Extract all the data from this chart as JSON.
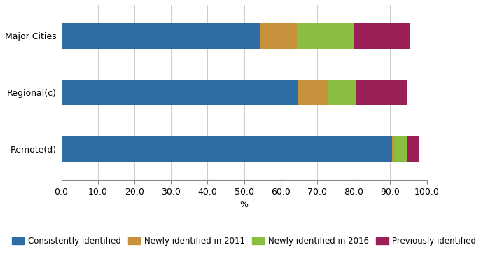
{
  "categories": [
    "Remote(d)",
    "Regional(c)",
    "Major Cities"
  ],
  "series": {
    "Consistently identified": [
      90.5,
      64.8,
      54.5
    ],
    "Newly identified in 2011": [
      0.5,
      8.2,
      10.0
    ],
    "Newly identified in 2016": [
      3.5,
      7.5,
      15.5
    ],
    "Previously identified": [
      3.5,
      14.0,
      15.5
    ]
  },
  "colors": {
    "Consistently identified": "#2E6DA4",
    "Newly identified in 2011": "#C8923C",
    "Newly identified in 2016": "#8BBD40",
    "Previously identified": "#9C2058"
  },
  "xlabel": "%",
  "xlim": [
    0,
    100
  ],
  "xticks": [
    0.0,
    10.0,
    20.0,
    30.0,
    40.0,
    50.0,
    60.0,
    70.0,
    80.0,
    90.0,
    100.0
  ],
  "bar_height": 0.45,
  "background_color": "#ffffff",
  "legend_fontsize": 8.5,
  "tick_fontsize": 9,
  "label_fontsize": 9
}
